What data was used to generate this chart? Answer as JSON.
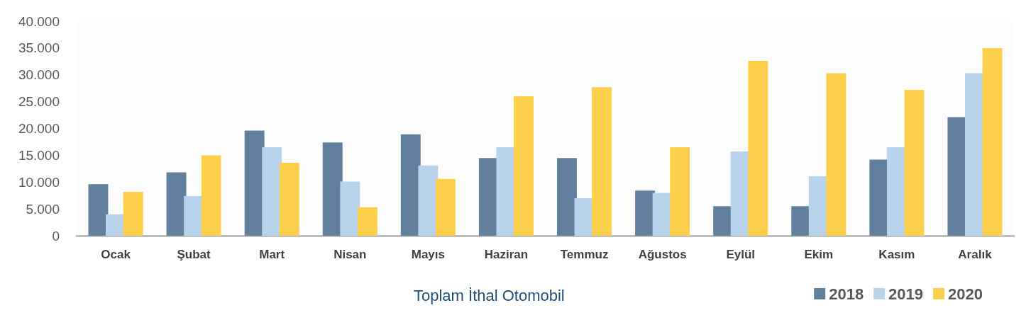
{
  "chart_data": {
    "type": "bar",
    "title": "Toplam İthal Otomobil",
    "categories": [
      "Ocak",
      "Şubat",
      "Mart",
      "Nisan",
      "Mayıs",
      "Haziran",
      "Temmuz",
      "Ağustos",
      "Eylül",
      "Ekim",
      "Kasım",
      "Aralık"
    ],
    "series": [
      {
        "name": "2018",
        "color": "#627f9e",
        "values": [
          9600,
          11800,
          19600,
          17400,
          18900,
          14500,
          14500,
          8400,
          5500,
          5500,
          14200,
          22100
        ]
      },
      {
        "name": "2019",
        "color": "#b9d3ec",
        "values": [
          4000,
          7400,
          16500,
          10100,
          13100,
          16500,
          7000,
          8000,
          15700,
          11100,
          16500,
          30300
        ]
      },
      {
        "name": "2020",
        "color": "#fcd04b",
        "values": [
          8200,
          15000,
          13600,
          5300,
          10600,
          26000,
          27700,
          16500,
          32600,
          30300,
          27200,
          35000
        ]
      }
    ],
    "ylim": [
      0,
      40000
    ],
    "yticks": [
      0,
      {
        "value": 5000,
        "label": "5.000"
      },
      {
        "value": 10000,
        "label": "10.000"
      },
      {
        "value": 15000,
        "label": "15.000"
      },
      {
        "value": 20000,
        "label": "20.000"
      },
      {
        "value": 25000,
        "label": "25.000"
      },
      {
        "value": 30000,
        "label": "30.000"
      },
      {
        "value": 35000,
        "label": "35.000"
      },
      {
        "value": 40000,
        "label": "40.000"
      }
    ],
    "grid": false,
    "legend": "bottom right"
  }
}
